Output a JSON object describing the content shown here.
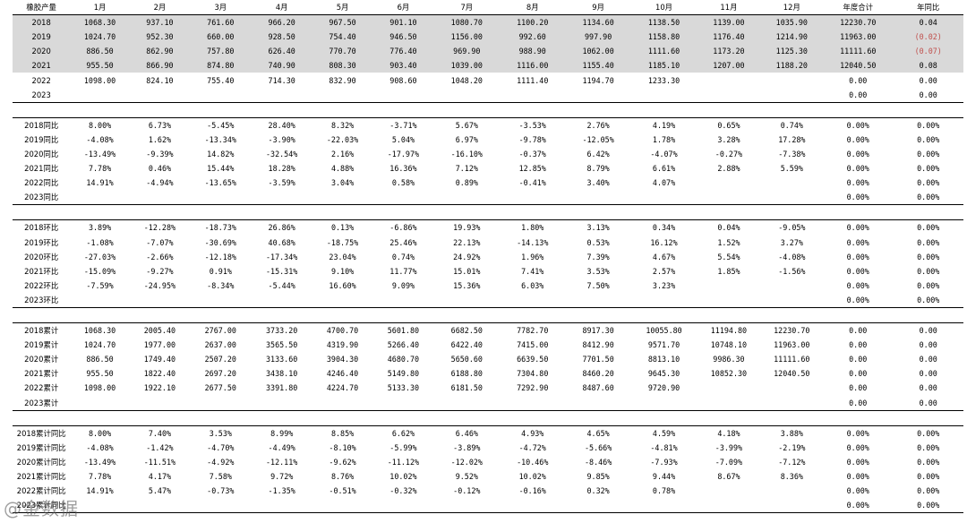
{
  "header": [
    "橡胶产量",
    "1月",
    "2月",
    "3月",
    "4月",
    "5月",
    "6月",
    "7月",
    "8月",
    "9月",
    "10月",
    "11月",
    "12月",
    "年度合计",
    "年同比"
  ],
  "sections": [
    {
      "name": "production",
      "rows": [
        [
          "2018",
          "1068.30",
          "937.10",
          "761.60",
          "966.20",
          "967.50",
          "901.10",
          "1080.70",
          "1100.20",
          "1134.60",
          "1138.50",
          "1139.00",
          "1035.90",
          "12230.70",
          "0.04"
        ],
        [
          "2019",
          "1024.70",
          "952.30",
          "660.00",
          "928.50",
          "754.40",
          "946.50",
          "1156.00",
          "992.60",
          "997.90",
          "1158.80",
          "1176.40",
          "1214.90",
          "11963.00",
          "(0.02)"
        ],
        [
          "2020",
          "886.50",
          "862.90",
          "757.80",
          "626.40",
          "770.70",
          "776.40",
          "969.90",
          "988.90",
          "1062.00",
          "1111.60",
          "1173.20",
          "1125.30",
          "11111.60",
          "(0.07)"
        ],
        [
          "2021",
          "955.50",
          "866.90",
          "874.80",
          "740.90",
          "808.30",
          "903.40",
          "1039.00",
          "1116.00",
          "1155.40",
          "1185.10",
          "1207.00",
          "1188.20",
          "12040.50",
          "0.08"
        ],
        [
          "2022",
          "1098.00",
          "824.10",
          "755.40",
          "714.30",
          "832.90",
          "908.60",
          "1048.20",
          "1111.40",
          "1194.70",
          "1233.30",
          "",
          "",
          "0.00",
          "0.00"
        ],
        [
          "2023",
          "",
          "",
          "",
          "",
          "",
          "",
          "",
          "",
          "",
          "",
          "",
          "",
          "0.00",
          "0.00"
        ]
      ]
    },
    {
      "name": "yoy",
      "rows": [
        [
          "2018同比",
          "8.00%",
          "6.73%",
          "-5.45%",
          "28.40%",
          "8.32%",
          "-3.71%",
          "5.67%",
          "-3.53%",
          "2.76%",
          "4.19%",
          "0.65%",
          "0.74%",
          "0.00%",
          "0.00%"
        ],
        [
          "2019同比",
          "-4.08%",
          "1.62%",
          "-13.34%",
          "-3.90%",
          "-22.03%",
          "5.04%",
          "6.97%",
          "-9.78%",
          "-12.05%",
          "1.78%",
          "3.28%",
          "17.28%",
          "0.00%",
          "0.00%"
        ],
        [
          "2020同比",
          "-13.49%",
          "-9.39%",
          "14.82%",
          "-32.54%",
          "2.16%",
          "-17.97%",
          "-16.10%",
          "-0.37%",
          "6.42%",
          "-4.07%",
          "-0.27%",
          "-7.38%",
          "0.00%",
          "0.00%"
        ],
        [
          "2021同比",
          "7.78%",
          "0.46%",
          "15.44%",
          "18.28%",
          "4.88%",
          "16.36%",
          "7.12%",
          "12.85%",
          "8.79%",
          "6.61%",
          "2.88%",
          "5.59%",
          "0.00%",
          "0.00%"
        ],
        [
          "2022同比",
          "14.91%",
          "-4.94%",
          "-13.65%",
          "-3.59%",
          "3.04%",
          "0.58%",
          "0.89%",
          "-0.41%",
          "3.40%",
          "4.07%",
          "",
          "",
          "0.00%",
          "0.00%"
        ],
        [
          "2023同比",
          "",
          "",
          "",
          "",
          "",
          "",
          "",
          "",
          "",
          "",
          "",
          "",
          "0.00%",
          "0.00%"
        ]
      ]
    },
    {
      "name": "mom",
      "rows": [
        [
          "2018环比",
          "3.89%",
          "-12.28%",
          "-18.73%",
          "26.86%",
          "0.13%",
          "-6.86%",
          "19.93%",
          "1.80%",
          "3.13%",
          "0.34%",
          "0.04%",
          "-9.05%",
          "0.00%",
          "0.00%"
        ],
        [
          "2019环比",
          "-1.08%",
          "-7.07%",
          "-30.69%",
          "40.68%",
          "-18.75%",
          "25.46%",
          "22.13%",
          "-14.13%",
          "0.53%",
          "16.12%",
          "1.52%",
          "3.27%",
          "0.00%",
          "0.00%"
        ],
        [
          "2020环比",
          "-27.03%",
          "-2.66%",
          "-12.18%",
          "-17.34%",
          "23.04%",
          "0.74%",
          "24.92%",
          "1.96%",
          "7.39%",
          "4.67%",
          "5.54%",
          "-4.08%",
          "0.00%",
          "0.00%"
        ],
        [
          "2021环比",
          "-15.09%",
          "-9.27%",
          "0.91%",
          "-15.31%",
          "9.10%",
          "11.77%",
          "15.01%",
          "7.41%",
          "3.53%",
          "2.57%",
          "1.85%",
          "-1.56%",
          "0.00%",
          "0.00%"
        ],
        [
          "2022环比",
          "-7.59%",
          "-24.95%",
          "-8.34%",
          "-5.44%",
          "16.60%",
          "9.09%",
          "15.36%",
          "6.03%",
          "7.50%",
          "3.23%",
          "",
          "",
          "0.00%",
          "0.00%"
        ],
        [
          "2023环比",
          "",
          "",
          "",
          "",
          "",
          "",
          "",
          "",
          "",
          "",
          "",
          "",
          "0.00%",
          "0.00%"
        ]
      ]
    },
    {
      "name": "cumulative",
      "rows": [
        [
          "2018累计",
          "1068.30",
          "2005.40",
          "2767.00",
          "3733.20",
          "4700.70",
          "5601.80",
          "6682.50",
          "7782.70",
          "8917.30",
          "10055.80",
          "11194.80",
          "12230.70",
          "0.00",
          "0.00"
        ],
        [
          "2019累计",
          "1024.70",
          "1977.00",
          "2637.00",
          "3565.50",
          "4319.90",
          "5266.40",
          "6422.40",
          "7415.00",
          "8412.90",
          "9571.70",
          "10748.10",
          "11963.00",
          "0.00",
          "0.00"
        ],
        [
          "2020累计",
          "886.50",
          "1749.40",
          "2507.20",
          "3133.60",
          "3904.30",
          "4680.70",
          "5650.60",
          "6639.50",
          "7701.50",
          "8813.10",
          "9986.30",
          "11111.60",
          "0.00",
          "0.00"
        ],
        [
          "2021累计",
          "955.50",
          "1822.40",
          "2697.20",
          "3438.10",
          "4246.40",
          "5149.80",
          "6188.80",
          "7304.80",
          "8460.20",
          "9645.30",
          "10852.30",
          "12040.50",
          "0.00",
          "0.00"
        ],
        [
          "2022累计",
          "1098.00",
          "1922.10",
          "2677.50",
          "3391.80",
          "4224.70",
          "5133.30",
          "6181.50",
          "7292.90",
          "8487.60",
          "9720.90",
          "",
          "",
          "0.00",
          "0.00"
        ],
        [
          "2023累计",
          "",
          "",
          "",
          "",
          "",
          "",
          "",
          "",
          "",
          "",
          "",
          "",
          "0.00",
          "0.00"
        ]
      ]
    },
    {
      "name": "cumulative-yoy",
      "rows": [
        [
          "2018累计同比",
          "8.00%",
          "7.40%",
          "3.53%",
          "8.99%",
          "8.85%",
          "6.62%",
          "6.46%",
          "4.93%",
          "4.65%",
          "4.59%",
          "4.18%",
          "3.88%",
          "0.00%",
          "0.00%"
        ],
        [
          "2019累计同比",
          "-4.08%",
          "-1.42%",
          "-4.70%",
          "-4.49%",
          "-8.10%",
          "-5.99%",
          "-3.89%",
          "-4.72%",
          "-5.66%",
          "-4.81%",
          "-3.99%",
          "-2.19%",
          "0.00%",
          "0.00%"
        ],
        [
          "2020累计同比",
          "-13.49%",
          "-11.51%",
          "-4.92%",
          "-12.11%",
          "-9.62%",
          "-11.12%",
          "-12.02%",
          "-10.46%",
          "-8.46%",
          "-7.93%",
          "-7.09%",
          "-7.12%",
          "0.00%",
          "0.00%"
        ],
        [
          "2021累计同比",
          "7.78%",
          "4.17%",
          "7.58%",
          "9.72%",
          "8.76%",
          "10.02%",
          "9.52%",
          "10.02%",
          "9.85%",
          "9.44%",
          "8.67%",
          "8.36%",
          "0.00%",
          "0.00%"
        ],
        [
          "2022累计同比",
          "14.91%",
          "5.47%",
          "-0.73%",
          "-1.35%",
          "-0.51%",
          "-0.32%",
          "-0.12%",
          "-0.16%",
          "0.32%",
          "0.78%",
          "",
          "",
          "0.00%",
          "0.00%"
        ],
        [
          "2023累计同比",
          "",
          "",
          "",
          "",
          "",
          "",
          "",
          "",
          "",
          "",
          "",
          "",
          "0.00%",
          "0.00%"
        ]
      ]
    }
  ],
  "watermark": "@金数据",
  "colors": {
    "shade": "#d9d9d9",
    "negative": "#c0504d"
  }
}
